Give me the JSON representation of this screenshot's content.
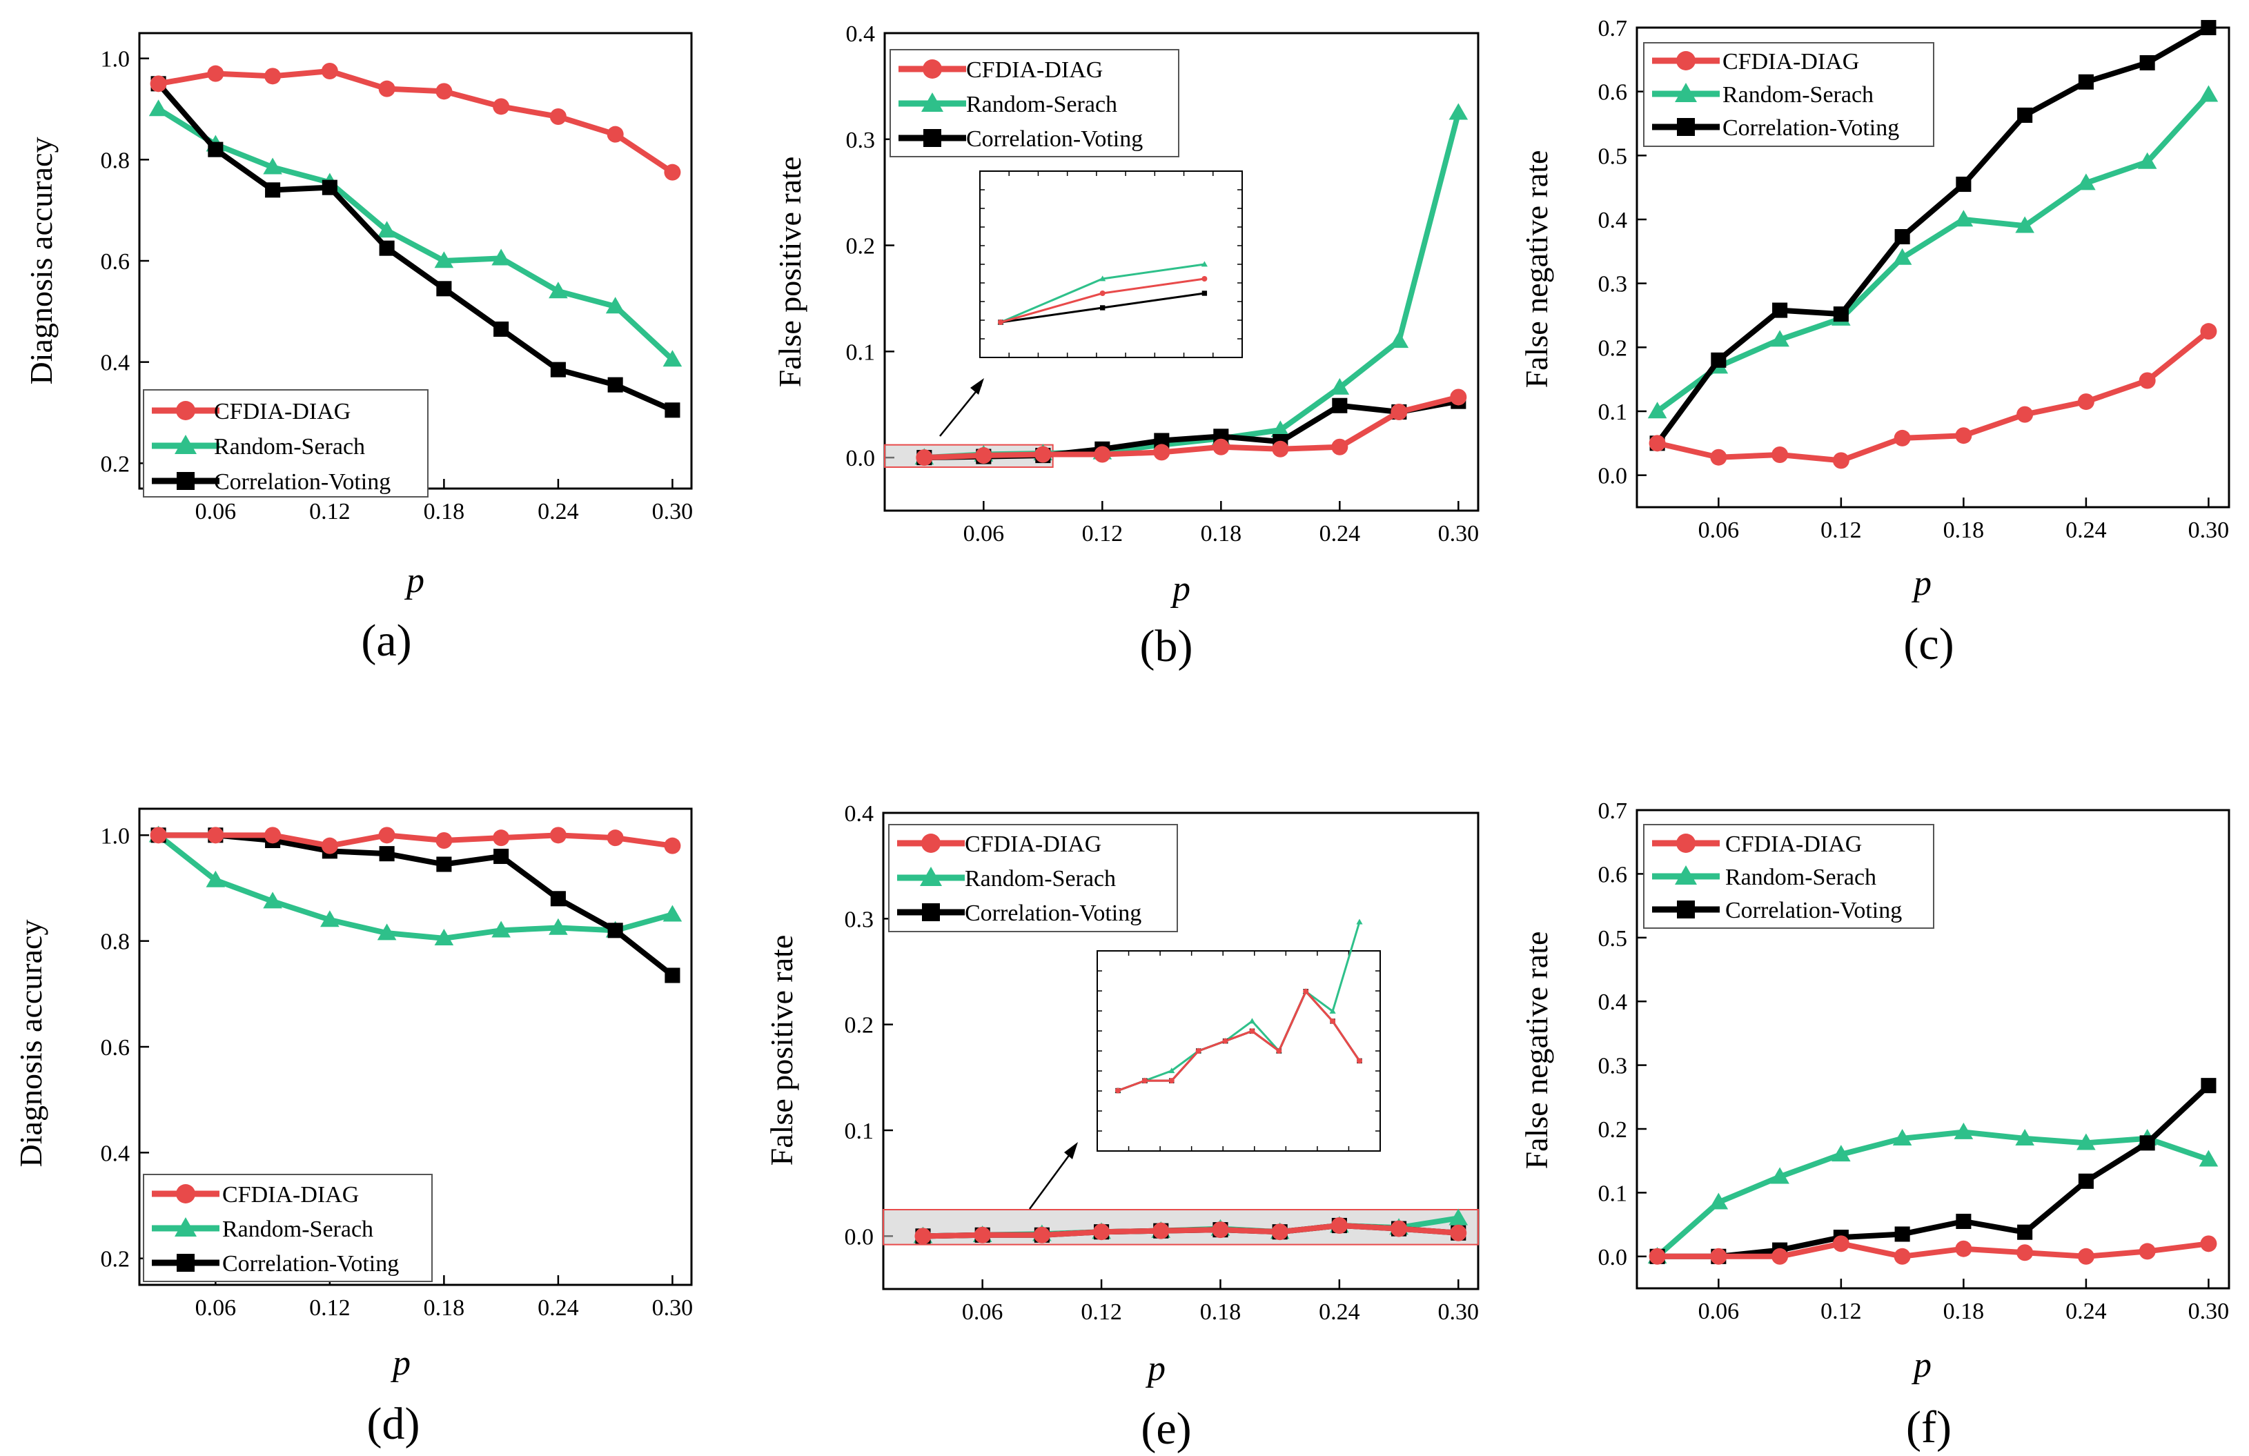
{
  "figure": {
    "legend_entries": [
      "CFDIA-DIAG",
      "Random-Serach",
      "Correlation-Voting"
    ],
    "series_colors": {
      "CFDIA-DIAG": "#e84a4a",
      "Random-Serach": "#2ec08a",
      "Correlation-Voting": "#000000"
    },
    "highlight_box_color": "#c8c8c8",
    "highlight_border_color": "#e84a4a"
  },
  "chart_data": [
    {
      "panel": "(a)",
      "type": "line",
      "xlabel": "p",
      "ylabel": "Diagnosis accuracy",
      "xlim": [
        0.02,
        0.31
      ],
      "ylim": [
        0.15,
        1.05
      ],
      "xticks": [
        "0.06",
        "0.12",
        "0.18",
        "0.24",
        "0.30"
      ],
      "yticks": [
        "0.2",
        "0.4",
        "0.6",
        "0.8",
        "1.0"
      ],
      "legend_position": "bottom-left",
      "x": [
        0.03,
        0.06,
        0.09,
        0.12,
        0.15,
        0.18,
        0.21,
        0.24,
        0.27,
        0.3
      ],
      "series": [
        {
          "name": "CFDIA-DIAG",
          "values": [
            0.95,
            0.97,
            0.965,
            0.975,
            0.94,
            0.935,
            0.905,
            0.885,
            0.85,
            0.775
          ]
        },
        {
          "name": "Random-Serach",
          "values": [
            0.9,
            0.83,
            0.785,
            0.755,
            0.66,
            0.6,
            0.605,
            0.54,
            0.51,
            0.405
          ]
        },
        {
          "name": "Correlation-Voting",
          "values": [
            0.95,
            0.82,
            0.74,
            0.745,
            0.625,
            0.545,
            0.465,
            0.385,
            0.355,
            0.305
          ]
        }
      ]
    },
    {
      "panel": "(b)",
      "type": "line",
      "xlabel": "p",
      "ylabel": "False positive rate",
      "xlim": [
        0.01,
        0.31
      ],
      "ylim": [
        -0.05,
        0.4
      ],
      "xticks": [
        "0.06",
        "0.12",
        "0.18",
        "0.24",
        "0.30"
      ],
      "yticks": [
        "0.0",
        "0.1",
        "0.2",
        "0.3",
        "0.4"
      ],
      "legend_position": "top-left",
      "x": [
        0.03,
        0.06,
        0.09,
        0.12,
        0.15,
        0.18,
        0.21,
        0.24,
        0.27,
        0.3
      ],
      "series": [
        {
          "name": "CFDIA-DIAG",
          "values": [
            0.0,
            0.002,
            0.003,
            0.003,
            0.005,
            0.01,
            0.008,
            0.01,
            0.043,
            0.057
          ]
        },
        {
          "name": "Random-Serach",
          "values": [
            0.0,
            0.003,
            0.004,
            0.005,
            0.012,
            0.018,
            0.026,
            0.066,
            0.11,
            0.325
          ]
        },
        {
          "name": "Correlation-Voting",
          "values": [
            0.0,
            0.001,
            0.002,
            0.008,
            0.016,
            0.02,
            0.015,
            0.049,
            0.043,
            0.053
          ]
        }
      ],
      "highlight": {
        "x": [
          0.01,
          0.095
        ],
        "y": [
          -0.009,
          0.012
        ]
      },
      "inset": {
        "x": [
          0.03,
          0.095
        ],
        "y": [
          -0.001,
          0.009
        ]
      }
    },
    {
      "panel": "(c)",
      "type": "line",
      "xlabel": "p",
      "ylabel": "False negative rate",
      "xlim": [
        0.02,
        0.31
      ],
      "ylim": [
        -0.05,
        0.7
      ],
      "xticks": [
        "0.06",
        "0.12",
        "0.18",
        "0.24",
        "0.30"
      ],
      "yticks": [
        "0.0",
        "0.1",
        "0.2",
        "0.3",
        "0.4",
        "0.5",
        "0.6",
        "0.7"
      ],
      "legend_position": "top-left",
      "x": [
        0.03,
        0.06,
        0.09,
        0.12,
        0.15,
        0.18,
        0.21,
        0.24,
        0.27,
        0.3
      ],
      "series": [
        {
          "name": "CFDIA-DIAG",
          "values": [
            0.05,
            0.028,
            0.032,
            0.023,
            0.058,
            0.062,
            0.095,
            0.115,
            0.148,
            0.225
          ]
        },
        {
          "name": "Random-Serach",
          "values": [
            0.1,
            0.17,
            0.212,
            0.245,
            0.34,
            0.4,
            0.39,
            0.457,
            0.49,
            0.595
          ]
        },
        {
          "name": "Correlation-Voting",
          "values": [
            0.05,
            0.18,
            0.258,
            0.252,
            0.373,
            0.455,
            0.563,
            0.615,
            0.645,
            0.7
          ]
        }
      ]
    },
    {
      "panel": "(d)",
      "type": "line",
      "xlabel": "p",
      "ylabel": "Diagnosis accuracy",
      "xlim": [
        0.02,
        0.31
      ],
      "ylim": [
        0.15,
        1.05
      ],
      "xticks": [
        "0.06",
        "0.12",
        "0.18",
        "0.24",
        "0.30"
      ],
      "yticks": [
        "0.2",
        "0.4",
        "0.6",
        "0.8",
        "1.0"
      ],
      "legend_position": "bottom-left",
      "x": [
        0.03,
        0.06,
        0.09,
        0.12,
        0.15,
        0.18,
        0.21,
        0.24,
        0.27,
        0.3
      ],
      "series": [
        {
          "name": "CFDIA-DIAG",
          "values": [
            1.0,
            1.0,
            1.0,
            0.98,
            1.0,
            0.99,
            0.995,
            1.0,
            0.995,
            0.98
          ]
        },
        {
          "name": "Random-Serach",
          "values": [
            1.0,
            0.915,
            0.875,
            0.84,
            0.815,
            0.805,
            0.82,
            0.825,
            0.82,
            0.85
          ]
        },
        {
          "name": "Correlation-Voting",
          "values": [
            1.0,
            1.0,
            0.99,
            0.97,
            0.965,
            0.945,
            0.96,
            0.88,
            0.82,
            0.735
          ]
        }
      ]
    },
    {
      "panel": "(e)",
      "type": "line",
      "xlabel": "p",
      "ylabel": "False positive rate",
      "xlim": [
        0.01,
        0.31
      ],
      "ylim": [
        -0.05,
        0.4
      ],
      "xticks": [
        "0.06",
        "0.12",
        "0.18",
        "0.24",
        "0.30"
      ],
      "yticks": [
        "0.0",
        "0.1",
        "0.2",
        "0.3",
        "0.4"
      ],
      "legend_position": "top-left",
      "x": [
        0.03,
        0.06,
        0.09,
        0.12,
        0.15,
        0.18,
        0.21,
        0.24,
        0.27,
        0.3
      ],
      "series": [
        {
          "name": "CFDIA-DIAG",
          "values": [
            0.0,
            0.001,
            0.001,
            0.004,
            0.005,
            0.006,
            0.004,
            0.01,
            0.007,
            0.003
          ]
        },
        {
          "name": "Random-Serach",
          "values": [
            0.0,
            0.001,
            0.002,
            0.004,
            0.005,
            0.007,
            0.004,
            0.01,
            0.008,
            0.017
          ]
        },
        {
          "name": "Correlation-Voting",
          "values": [
            0.0,
            0.001,
            0.001,
            0.004,
            0.005,
            0.006,
            0.004,
            0.01,
            0.007,
            0.003
          ]
        }
      ],
      "highlight": {
        "x": [
          0.01,
          0.31
        ],
        "y": [
          -0.008,
          0.025
        ]
      },
      "inset": {
        "x": [
          0.03,
          0.3
        ],
        "y": [
          -0.004,
          0.012
        ]
      }
    },
    {
      "panel": "(f)",
      "type": "line",
      "xlabel": "p",
      "ylabel": "False negative rate",
      "xlim": [
        0.02,
        0.31
      ],
      "ylim": [
        -0.05,
        0.7
      ],
      "xticks": [
        "0.06",
        "0.12",
        "0.18",
        "0.24",
        "0.30"
      ],
      "yticks": [
        "0.0",
        "0.1",
        "0.2",
        "0.3",
        "0.4",
        "0.5",
        "0.6",
        "0.7"
      ],
      "legend_position": "top-left",
      "x": [
        0.03,
        0.06,
        0.09,
        0.12,
        0.15,
        0.18,
        0.21,
        0.24,
        0.27,
        0.3
      ],
      "series": [
        {
          "name": "CFDIA-DIAG",
          "values": [
            0.0,
            0.0,
            0.0,
            0.02,
            0.0,
            0.012,
            0.006,
            0.0,
            0.008,
            0.02
          ]
        },
        {
          "name": "Random-Serach",
          "values": [
            0.0,
            0.085,
            0.125,
            0.16,
            0.185,
            0.195,
            0.185,
            0.178,
            0.185,
            0.152
          ]
        },
        {
          "name": "Correlation-Voting",
          "values": [
            0.0,
            0.0,
            0.01,
            0.03,
            0.035,
            0.055,
            0.038,
            0.118,
            0.178,
            0.268
          ]
        }
      ]
    }
  ]
}
